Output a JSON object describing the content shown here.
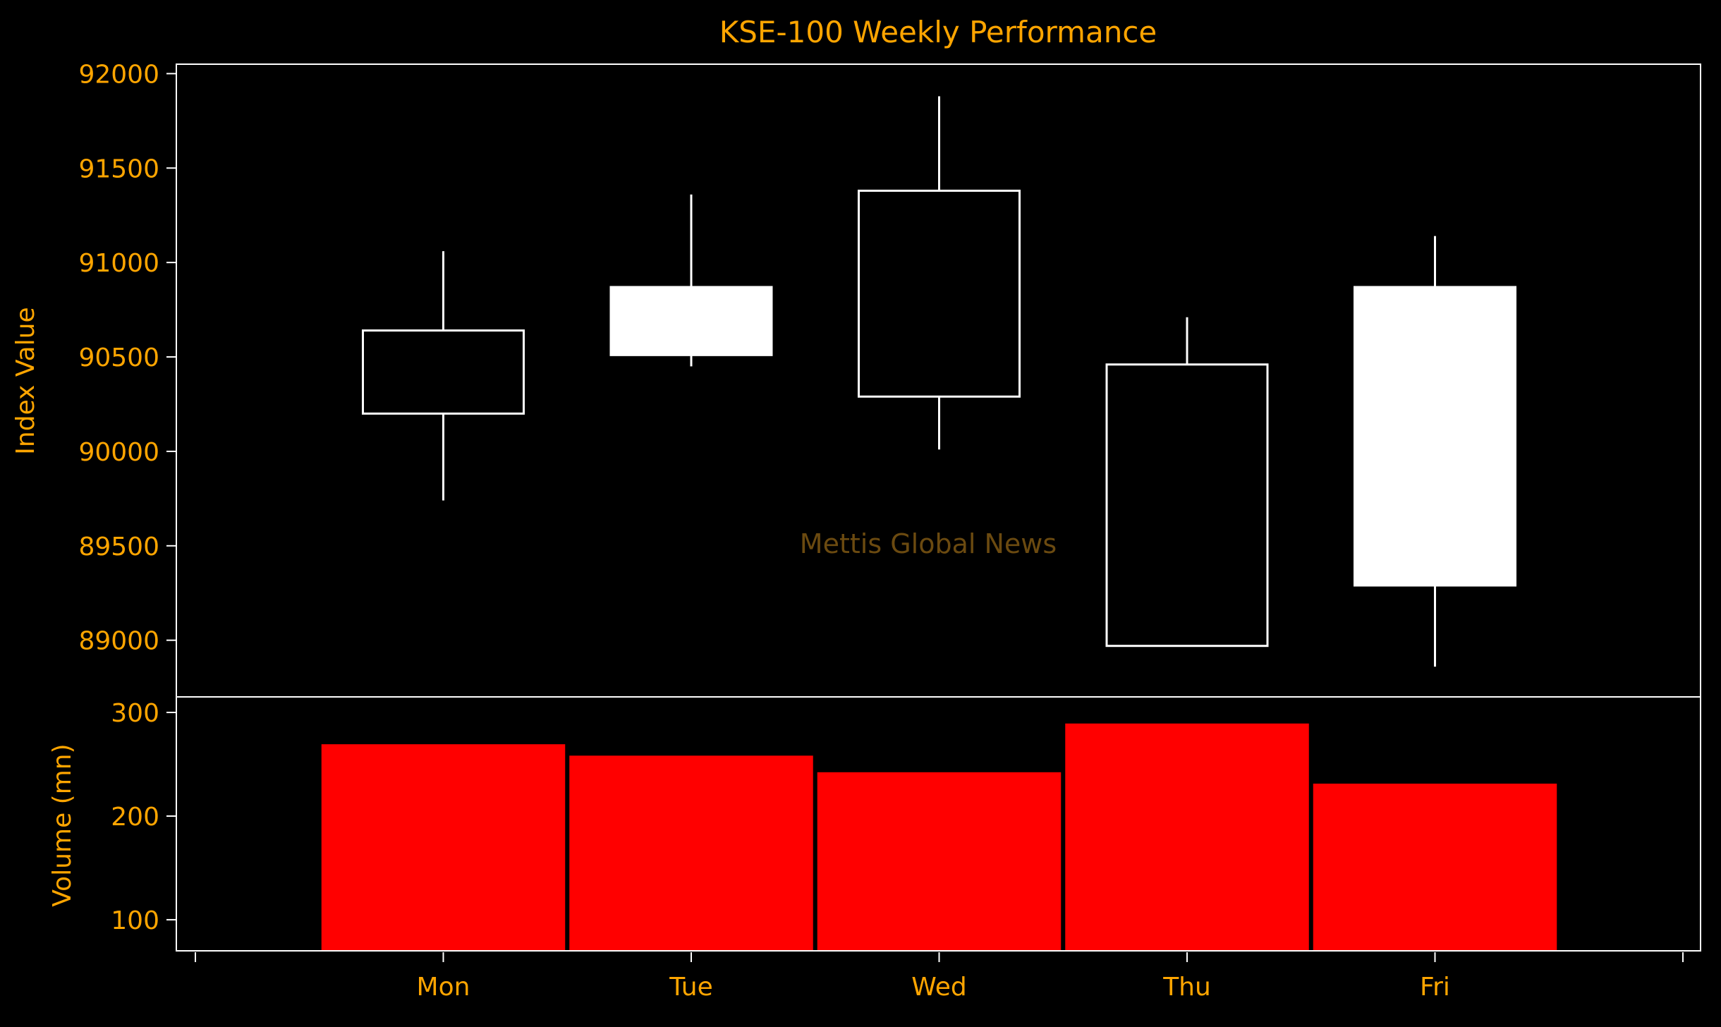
{
  "chart_data": [
    {
      "type": "candlestick",
      "title": "KSE-100 Weekly Performance",
      "ylabel": "Index Value",
      "categories": [
        "Mon",
        "Tue",
        "Wed",
        "Thu",
        "Fri"
      ],
      "ylim": [
        88700,
        92050
      ],
      "yticks": [
        89000,
        89500,
        90000,
        90500,
        91000,
        91500,
        92000
      ],
      "series": [
        {
          "open": 90640,
          "high": 91060,
          "low": 89740,
          "close": 90200,
          "filled": false
        },
        {
          "open": 90510,
          "high": 91360,
          "low": 90450,
          "close": 90870,
          "filled": true
        },
        {
          "open": 91380,
          "high": 91880,
          "low": 90010,
          "close": 90290,
          "filled": false
        },
        {
          "open": 90460,
          "high": 90710,
          "low": 88970,
          "close": 88970,
          "filled": false
        },
        {
          "open": 89290,
          "high": 91140,
          "low": 88860,
          "close": 90870,
          "filled": true
        }
      ],
      "annotations": [
        {
          "text": "Mettis Global News"
        }
      ],
      "colors": {
        "candle": "#ffffff",
        "text": "#ffa500",
        "background": "#000000",
        "watermark": "#6b4a10"
      }
    },
    {
      "type": "bar",
      "ylabel": "Volume (mn)",
      "categories": [
        "Mon",
        "Tue",
        "Wed",
        "Thu",
        "Fri"
      ],
      "values": [
        270,
        259,
        243,
        290,
        232
      ],
      "ylim": [
        70,
        315
      ],
      "yticks": [
        100,
        200,
        300
      ],
      "colors": {
        "bar": "#ff0000",
        "edge": "#000000"
      }
    }
  ]
}
